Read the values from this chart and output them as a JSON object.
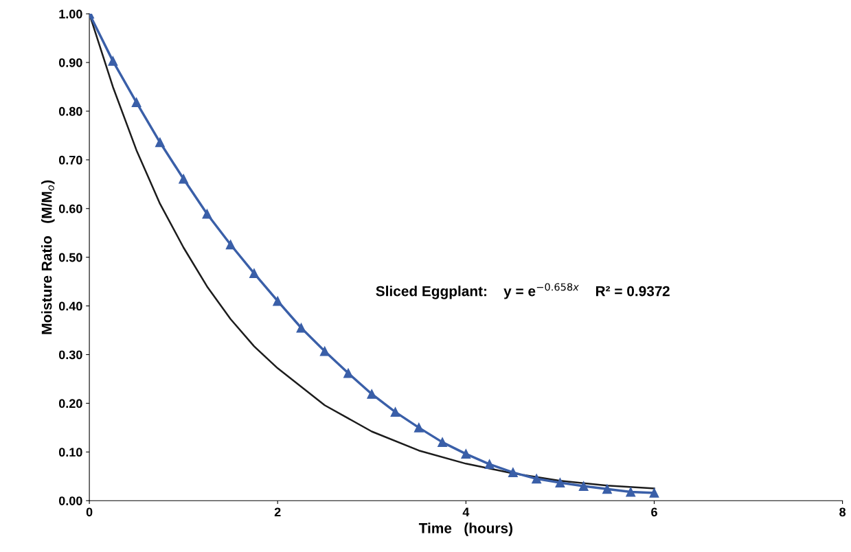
{
  "chart_data": {
    "type": "line",
    "xlabel": "Time   (hours)",
    "ylabel": "Moisture Ratio   (M/M$_{o}$)",
    "xlim": [
      0,
      8
    ],
    "xticks": [
      0,
      2,
      4,
      6,
      8
    ],
    "ylim": [
      0,
      1.0
    ],
    "yticks": [
      {
        "value": 0,
        "label": "0.00"
      },
      {
        "value": 0.1,
        "label": "0.10"
      },
      {
        "value": 0.2,
        "label": "0.20"
      },
      {
        "value": 0.3,
        "label": "0.30"
      },
      {
        "value": 0.4,
        "label": "0.40"
      },
      {
        "value": 0.5,
        "label": "0.50"
      },
      {
        "value": 0.6,
        "label": "0.60"
      },
      {
        "value": 0.7,
        "label": "0.70"
      },
      {
        "value": 0.8,
        "label": "0.80"
      },
      {
        "value": 0.9,
        "label": "0.90"
      },
      {
        "value": 1.0,
        "label": "1.00"
      }
    ],
    "grid": false,
    "series": [
      {
        "color": "#1c1c1c",
        "marker": "none",
        "x": [
          0,
          0.25,
          0.5,
          0.75,
          1,
          1.25,
          1.5,
          1.75,
          2,
          2.5,
          3,
          3.5,
          4,
          4.5,
          5,
          5.5,
          6
        ],
        "values": [
          1.0,
          0.85,
          0.72,
          0.61,
          0.52,
          0.44,
          0.373,
          0.317,
          0.272,
          0.196,
          0.142,
          0.103,
          0.076,
          0.056,
          0.041,
          0.031,
          0.025
        ]
      },
      {
        "color": "#3a5fa8",
        "marker": "triangle",
        "x": [
          0,
          0.25,
          0.5,
          0.75,
          1,
          1.25,
          1.5,
          1.75,
          2,
          2.25,
          2.5,
          2.75,
          3,
          3.25,
          3.5,
          3.75,
          4,
          4.25,
          4.5,
          4.75,
          5,
          5.25,
          5.5,
          5.75,
          6
        ],
        "values": [
          1.0,
          0.903,
          0.818,
          0.736,
          0.661,
          0.589,
          0.526,
          0.467,
          0.41,
          0.355,
          0.307,
          0.262,
          0.219,
          0.182,
          0.15,
          0.12,
          0.096,
          0.075,
          0.058,
          0.045,
          0.037,
          0.03,
          0.024,
          0.018,
          0.016
        ]
      }
    ],
    "annotations": [
      "Sliced Eggplant:    y = e$^{−0.658x}$    R² = 0.9372"
    ]
  }
}
